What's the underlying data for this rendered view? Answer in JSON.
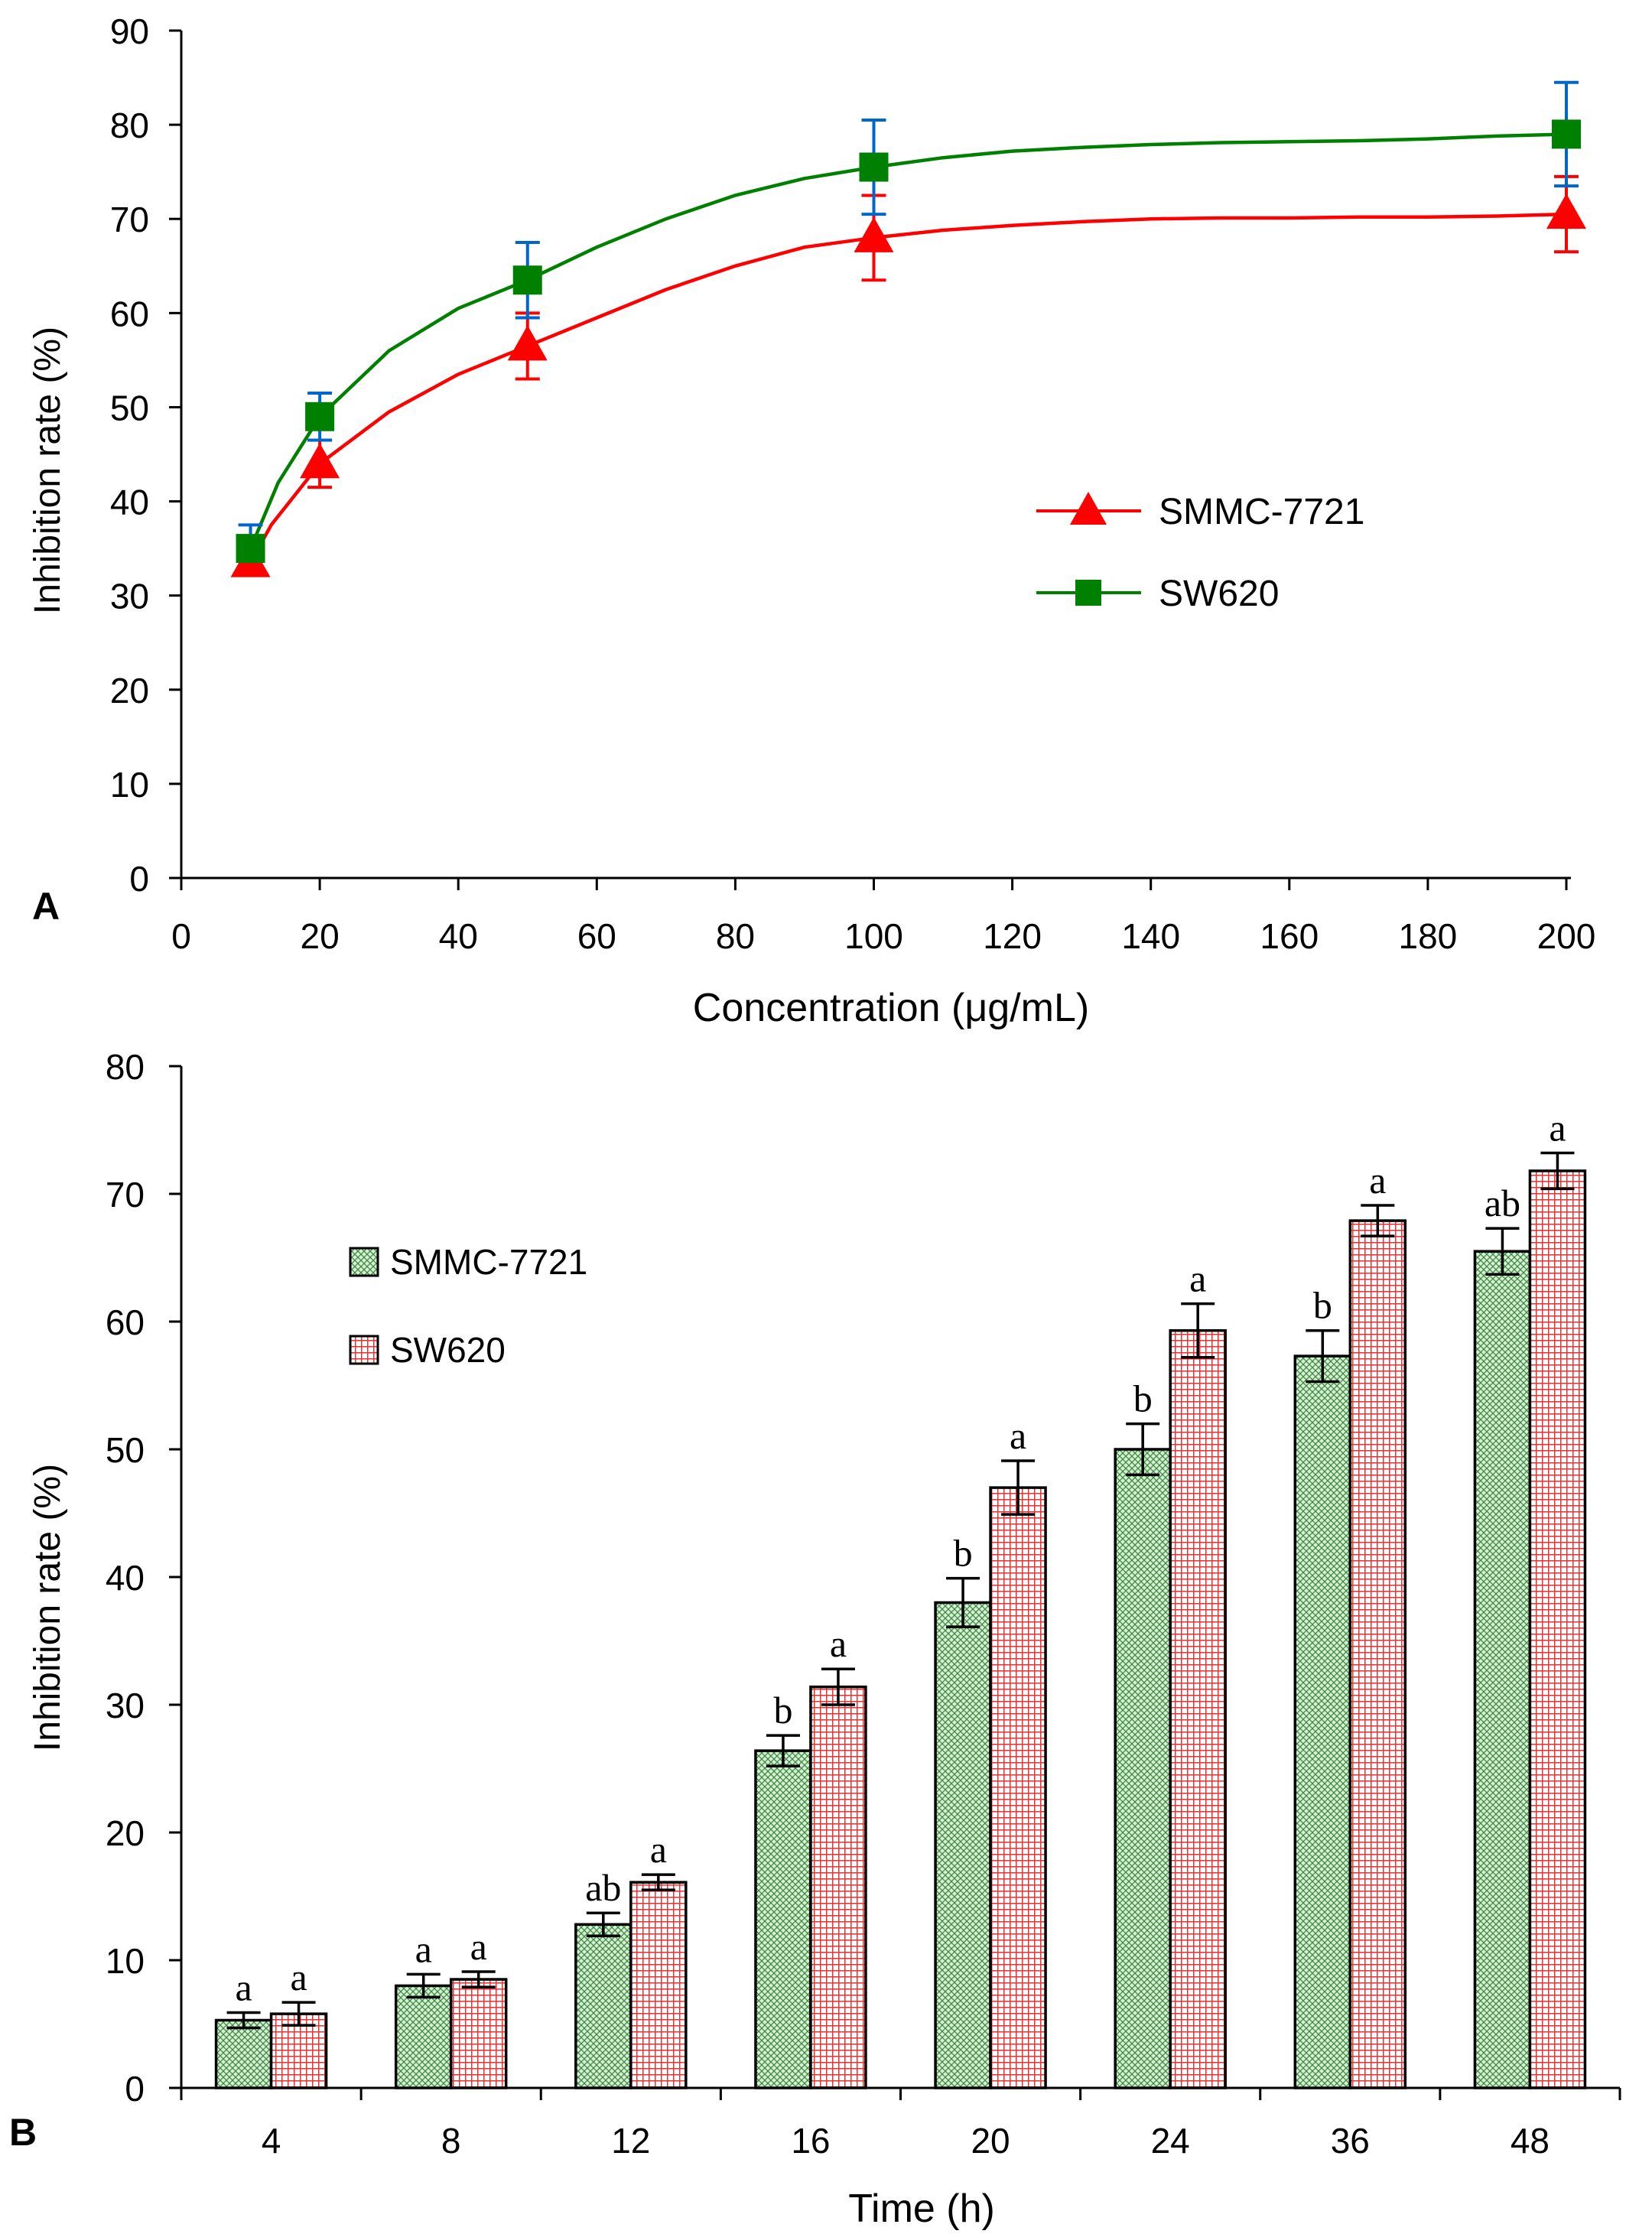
{
  "chart_data": [
    {
      "panel_label": "A",
      "type": "line",
      "title": "",
      "xlabel": "Concentration (μg/mL)",
      "ylabel": "Inhibition rate (%)",
      "xlim": [
        0,
        200
      ],
      "ylim": [
        0,
        90
      ],
      "x_ticks": [
        "0",
        "20",
        "40",
        "60",
        "80",
        "100",
        "120",
        "140",
        "160",
        "180",
        "200"
      ],
      "y_ticks": [
        "0",
        "10",
        "20",
        "30",
        "40",
        "50",
        "60",
        "70",
        "80",
        "90"
      ],
      "legend_position": "center-right",
      "x": [
        10,
        20,
        50,
        100,
        200
      ],
      "series": [
        {
          "name": "SMMC-7721",
          "marker": "triangle",
          "color": "#ff0000",
          "errorbar_color": "#ff0000",
          "values": [
            33.5,
            44.0,
            56.5,
            68.0,
            70.5
          ],
          "errors": [
            1.0,
            2.5,
            3.5,
            4.5,
            4.0
          ],
          "curve_x": [
            10,
            13,
            20,
            30,
            40,
            50,
            60,
            70,
            80,
            90,
            100,
            110,
            120,
            130,
            140,
            150,
            160,
            170,
            180,
            190,
            200
          ],
          "curve_y": [
            33.5,
            37.5,
            44.0,
            49.5,
            53.5,
            56.5,
            59.5,
            62.5,
            65.0,
            67.0,
            68.0,
            68.8,
            69.3,
            69.7,
            70.0,
            70.1,
            70.1,
            70.2,
            70.2,
            70.3,
            70.5
          ]
        },
        {
          "name": "SW620",
          "marker": "square",
          "color": "#008000",
          "errorbar_color": "#0066cc",
          "values": [
            35.0,
            49.0,
            63.5,
            75.5,
            79.0
          ],
          "errors": [
            2.5,
            2.5,
            4.0,
            5.0,
            5.5
          ],
          "curve_x": [
            10,
            14,
            20,
            30,
            40,
            50,
            60,
            70,
            80,
            90,
            100,
            110,
            120,
            130,
            140,
            150,
            160,
            170,
            180,
            190,
            200
          ],
          "curve_y": [
            35.0,
            42.0,
            49.0,
            56.0,
            60.5,
            63.5,
            67.0,
            70.0,
            72.5,
            74.3,
            75.5,
            76.5,
            77.2,
            77.6,
            77.9,
            78.1,
            78.2,
            78.3,
            78.5,
            78.8,
            79.0
          ]
        }
      ]
    },
    {
      "panel_label": "B",
      "type": "bar",
      "title": "",
      "xlabel": "Time (h)",
      "ylabel": "Inhibition rate (%)",
      "ylim": [
        0,
        80
      ],
      "y_ticks": [
        "0",
        "10",
        "20",
        "30",
        "40",
        "50",
        "60",
        "70",
        "80"
      ],
      "legend_position": "top-left",
      "categories": [
        "4",
        "8",
        "12",
        "16",
        "20",
        "24",
        "36",
        "48"
      ],
      "series": [
        {
          "name": "SMMC-7721",
          "fill": "#d8eed8",
          "pattern_color": "#3c8c3c",
          "values": [
            5.3,
            8.0,
            12.8,
            26.4,
            38.0,
            50.0,
            57.3,
            65.5
          ],
          "errors": [
            0.6,
            0.9,
            0.9,
            1.2,
            1.9,
            2.0,
            2.0,
            1.8
          ],
          "significance": [
            "a",
            "a",
            "ab",
            "b",
            "b",
            "b",
            "b",
            "ab"
          ]
        },
        {
          "name": "SW620",
          "fill": "#ffffff",
          "pattern_color": "#e63232",
          "values": [
            5.8,
            8.5,
            16.1,
            31.4,
            47.0,
            59.3,
            67.9,
            71.8
          ],
          "errors": [
            0.9,
            0.6,
            0.6,
            1.4,
            2.1,
            2.1,
            1.2,
            1.4
          ],
          "significance": [
            "a",
            "a",
            "a",
            "a",
            "a",
            "a",
            "a",
            "a"
          ]
        }
      ]
    }
  ]
}
